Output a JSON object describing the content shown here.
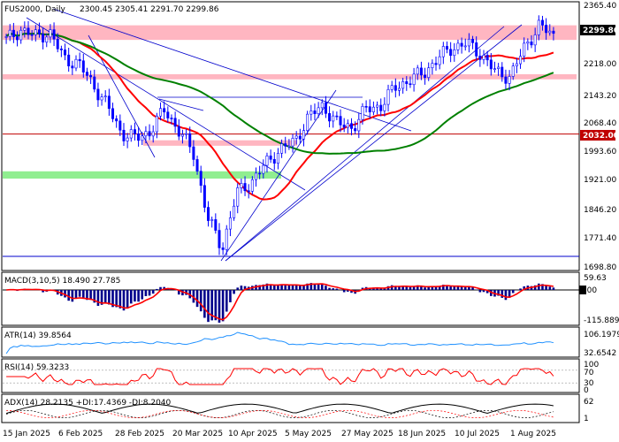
{
  "header": {
    "symbol_text": "FUS2000, Daily",
    "ohlc_text": "2300.45 2305.41 2291.70 2299.86"
  },
  "price_axis": {
    "ticks": [
      "2365.40",
      "2218.00",
      "2143.20",
      "2068.40",
      "1993.60",
      "1921.00",
      "1846.20",
      "1771.40",
      "1698.80"
    ],
    "last_price_badge": "2299.86",
    "level_badge": "2032.00"
  },
  "date_axis": {
    "ticks": [
      "15 Jan 2025",
      "6 Feb 2025",
      "28 Feb 2025",
      "20 Mar 2025",
      "10 Apr 2025",
      "5 May 2025",
      "27 May 2025",
      "18 Jun 2025",
      "10 Jul 2025",
      "1 Aug 2025"
    ]
  },
  "colors": {
    "candle": "#0000ff",
    "ma_fast": "#ff0000",
    "ma_slow": "#008000",
    "resistance_zone": "#ffb6c1",
    "support_zone": "#90ee90",
    "trendline": "#0000cd",
    "level_line": "#c00000",
    "macd_hist": "#00008b",
    "macd_signal": "#ff0000",
    "atr_line": "#1e90ff",
    "rsi_line": "#ff0000",
    "adx_line": "#000000"
  },
  "indicators": {
    "macd": {
      "label": "MACD(3,10,5) 18.490 27.785",
      "ticks": [
        "59.63",
        "0.00",
        "-115.889"
      ]
    },
    "atr": {
      "label": "ATR(14) 39.8564",
      "ticks": [
        "106.1979",
        "32.6542"
      ]
    },
    "rsi": {
      "label": "RSI(14) 59.3233",
      "ticks": [
        "100",
        "70",
        "30",
        "0"
      ]
    },
    "adx": {
      "label": "ADX(14) 28.2135 +DI:17.4369 -DI:8.2040",
      "ticks": [
        "62",
        "1"
      ]
    }
  },
  "chart_data": {
    "type": "candlestick",
    "title": "FUS2000, Daily",
    "ohlc_last": {
      "open": 2300.45,
      "high": 2305.41,
      "low": 2291.7,
      "close": 2299.86
    },
    "ylim": [
      1680,
      2380
    ],
    "x": [
      "15 Jan 2025",
      "6 Feb 2025",
      "28 Feb 2025",
      "20 Mar 2025",
      "10 Apr 2025",
      "5 May 2025",
      "27 May 2025",
      "18 Jun 2025",
      "10 Jul 2025",
      "1 Aug 2025"
    ],
    "close_path": [
      2290,
      2318,
      2300,
      2310,
      2240,
      2225,
      2170,
      2110,
      2035,
      2020,
      2040,
      2100,
      2040,
      1980,
      1800,
      1720,
      1870,
      1900,
      1950,
      1990,
      2010,
      2080,
      2110,
      2060,
      2050,
      2100,
      2110,
      2160,
      2180,
      2200,
      2240,
      2270,
      2280,
      2250,
      2200,
      2190,
      2270,
      2330,
      2300
    ],
    "key_level": 2032.0,
    "last_price": 2299.86,
    "zones": [
      {
        "type": "resistance",
        "from": 2290,
        "to": 2330
      },
      {
        "type": "resistance",
        "from": 2182,
        "to": 2196
      },
      {
        "type": "resistance",
        "from": 2000,
        "to": 2015
      },
      {
        "type": "support",
        "from": 1910,
        "to": 1930
      }
    ],
    "indicators": {
      "macd": {
        "params": [
          3,
          10,
          5
        ],
        "values": [
          18.49,
          27.785
        ],
        "range": [
          -115.889,
          59.63
        ]
      },
      "atr": {
        "period": 14,
        "value": 39.8564,
        "range": [
          32.6542,
          106.1979
        ]
      },
      "rsi": {
        "period": 14,
        "value": 59.3233,
        "levels": [
          30,
          70
        ],
        "range": [
          0,
          100
        ]
      },
      "adx": {
        "period": 14,
        "adx": 28.2135,
        "plus_di": 17.4369,
        "minus_di": 8.204
      }
    },
    "grid": false,
    "legend": "top-left"
  }
}
